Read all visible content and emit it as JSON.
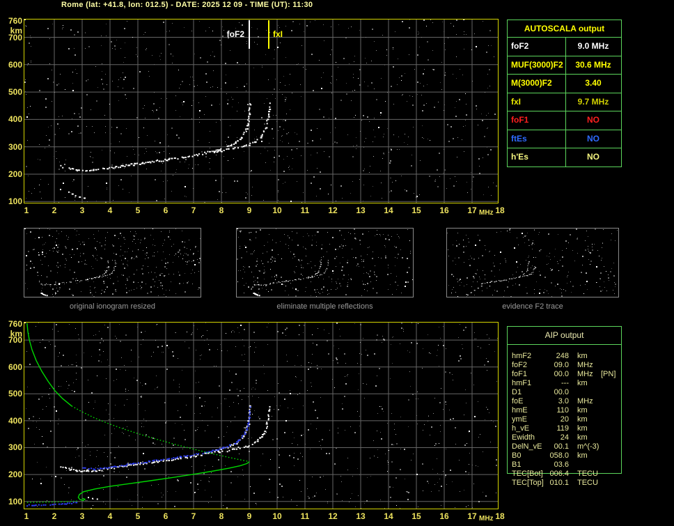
{
  "window": {
    "title": "Rome (lat: +41.8, lon: 012.5) - DATE: 2025 12 09 - TIME (UT): 11:30"
  },
  "colors": {
    "background": "#000000",
    "title_text": "#ffffa6",
    "axis_text": "#ede25e",
    "plot_border": "#d6d600",
    "grid": "#666666",
    "trace_white": "#ffffff",
    "profile_green": "#00d800",
    "scaled_trace_blue": "#2b3bf2",
    "table_border_green": "#5cd65c",
    "thumb_border_gray": "#8a8a8a",
    "caption_gray": "#9a9a9a",
    "aip_text": "#e8e89c",
    "foF2_marker": "#ffffff",
    "fxI_marker": "#ffff00"
  },
  "autoscala_table": {
    "title": "AUTOSCALA output",
    "rows": [
      {
        "label": "foF2",
        "value": "9.0 MHz",
        "label_color": "#ffffff",
        "value_color": "#ffffff"
      },
      {
        "label": "MUF(3000)F2",
        "value": "30.6 MHz",
        "label_color": "#ffff00",
        "value_color": "#ffff00"
      },
      {
        "label": "M(3000)F2",
        "value": "3.40",
        "label_color": "#ffff00",
        "value_color": "#ffff00"
      },
      {
        "label": "fxI",
        "value": "9.7 MHz",
        "label_color": "#e8e800",
        "value_color": "#cfcf00"
      },
      {
        "label": "foF1",
        "value": "NO",
        "label_color": "#ff1f1f",
        "value_color": "#ff1f1f"
      },
      {
        "label": "ftEs",
        "value": "NO",
        "label_color": "#2e6bff",
        "value_color": "#2e6bff"
      },
      {
        "label": "h'Es",
        "value": "NO",
        "label_color": "#f5f580",
        "value_color": "#f5f580"
      }
    ]
  },
  "aip_table": {
    "title": "AIP output",
    "rows": [
      {
        "name": "hmF2",
        "value": "248",
        "unit": "km",
        "note": ""
      },
      {
        "name": "foF2",
        "value": "09.0",
        "unit": "MHz",
        "note": ""
      },
      {
        "name": "foF1",
        "value": "00.0",
        "unit": "MHz",
        "note": "[PN]"
      },
      {
        "name": "hmF1",
        "value": "---",
        "unit": "km",
        "note": ""
      },
      {
        "name": "D1",
        "value": "00.0",
        "unit": "",
        "note": ""
      },
      {
        "name": "foE",
        "value": "3.0",
        "unit": "MHz",
        "note": ""
      },
      {
        "name": "hmE",
        "value": "110",
        "unit": "km",
        "note": ""
      },
      {
        "name": "ymE",
        "value": "20",
        "unit": "km",
        "note": ""
      },
      {
        "name": "h_vE",
        "value": "119",
        "unit": "km",
        "note": ""
      },
      {
        "name": "Ewidth",
        "value": "24",
        "unit": "km",
        "note": ""
      },
      {
        "name": "DelN_vE",
        "value": "00.1",
        "unit": "m^(-3)",
        "note": ""
      },
      {
        "name": "B0",
        "value": "058.0",
        "unit": "km",
        "note": ""
      },
      {
        "name": "B1",
        "value": "03.6",
        "unit": "",
        "note": ""
      },
      {
        "name": "TEC[Bot]",
        "value": "006.4",
        "unit": "TECU",
        "note": ""
      },
      {
        "name": "TEC[Top]",
        "value": "010.1",
        "unit": "TECU",
        "note": ""
      }
    ]
  },
  "thumbnails": [
    {
      "caption": "original ionogram resized"
    },
    {
      "caption": "eliminate multiple reflections"
    },
    {
      "caption": "evidence F2 trace"
    }
  ],
  "chart_data": [
    {
      "id": "scaled_ionogram",
      "type": "scatter",
      "title": "",
      "xlabel": "MHz",
      "ylabel": "km",
      "xlim": [
        1,
        18
      ],
      "ylim": [
        100,
        760
      ],
      "x_ticks": [
        1,
        2,
        3,
        4,
        5,
        6,
        7,
        8,
        9,
        10,
        11,
        12,
        13,
        14,
        15,
        16,
        17,
        18
      ],
      "y_ticks": [
        760,
        700,
        600,
        500,
        400,
        300,
        200,
        100
      ],
      "grid": true,
      "series": [
        {
          "name": "F2 ordinary trace",
          "style": "echo",
          "color": "#ffffff",
          "points": [
            [
              2.2,
              231
            ],
            [
              2.35,
              226
            ],
            [
              2.55,
              221
            ],
            [
              2.8,
              218
            ],
            [
              3.05,
              216
            ],
            [
              3.3,
              216
            ],
            [
              3.6,
              219
            ],
            [
              3.9,
              224
            ],
            [
              4.2,
              229
            ],
            [
              4.5,
              234
            ],
            [
              4.8,
              238
            ],
            [
              5.1,
              243
            ],
            [
              5.4,
              247
            ],
            [
              5.7,
              251
            ],
            [
              6.0,
              255
            ],
            [
              6.3,
              260
            ],
            [
              6.6,
              264
            ],
            [
              6.9,
              269
            ],
            [
              7.2,
              275
            ],
            [
              7.5,
              282
            ],
            [
              7.8,
              290
            ],
            [
              8.1,
              299
            ],
            [
              8.35,
              310
            ],
            [
              8.55,
              322
            ],
            [
              8.72,
              338
            ],
            [
              8.85,
              358
            ],
            [
              8.93,
              383
            ],
            [
              8.98,
              415
            ],
            [
              9.0,
              445
            ],
            [
              9.0,
              468
            ]
          ]
        },
        {
          "name": "F2 extraordinary trace",
          "style": "echo",
          "color": "#ffffff",
          "points": [
            [
              7.75,
              284
            ],
            [
              8.05,
              289
            ],
            [
              8.35,
              295
            ],
            [
              8.65,
              302
            ],
            [
              8.95,
              310
            ],
            [
              9.15,
              319
            ],
            [
              9.3,
              330
            ],
            [
              9.42,
              344
            ],
            [
              9.52,
              361
            ],
            [
              9.6,
              382
            ],
            [
              9.65,
              410
            ],
            [
              9.68,
              438
            ],
            [
              9.7,
              465
            ]
          ]
        },
        {
          "name": "E region echoes",
          "style": "blobs",
          "color": "#ffffff",
          "points": [
            [
              2.5,
              137
            ],
            [
              2.62,
              130
            ],
            [
              2.74,
              124
            ],
            [
              2.88,
              119
            ],
            [
              3.05,
              115
            ]
          ]
        }
      ],
      "markers": [
        {
          "label": "foF2",
          "x": 9.0,
          "color": "#ffffff"
        },
        {
          "label": "fxI",
          "x": 9.7,
          "color": "#ffff00"
        }
      ]
    },
    {
      "id": "profile_ionogram",
      "type": "scatter",
      "title": "",
      "xlabel": "MHz",
      "ylabel": "km",
      "xlim": [
        1,
        18
      ],
      "ylim": [
        100,
        760
      ],
      "x_ticks": [
        1,
        2,
        3,
        4,
        5,
        6,
        7,
        8,
        9,
        10,
        11,
        12,
        13,
        14,
        15,
        16,
        17,
        18
      ],
      "y_ticks": [
        760,
        700,
        600,
        500,
        400,
        300,
        200,
        100
      ],
      "grid": true,
      "series": [
        {
          "name": "F2 ordinary trace",
          "style": "echo",
          "color": "#ffffff",
          "points": [
            [
              2.2,
              231
            ],
            [
              2.35,
              226
            ],
            [
              2.55,
              221
            ],
            [
              2.8,
              218
            ],
            [
              3.05,
              216
            ],
            [
              3.3,
              216
            ],
            [
              3.6,
              219
            ],
            [
              3.9,
              224
            ],
            [
              4.2,
              229
            ],
            [
              4.5,
              234
            ],
            [
              4.8,
              238
            ],
            [
              5.1,
              243
            ],
            [
              5.4,
              247
            ],
            [
              5.7,
              251
            ],
            [
              6.0,
              255
            ],
            [
              6.3,
              260
            ],
            [
              6.6,
              264
            ],
            [
              6.9,
              269
            ],
            [
              7.2,
              275
            ],
            [
              7.5,
              282
            ],
            [
              7.8,
              290
            ],
            [
              8.1,
              299
            ],
            [
              8.35,
              310
            ],
            [
              8.55,
              322
            ],
            [
              8.72,
              338
            ],
            [
              8.85,
              358
            ],
            [
              8.93,
              383
            ],
            [
              8.98,
              415
            ],
            [
              9.0,
              445
            ],
            [
              9.0,
              468
            ]
          ]
        },
        {
          "name": "F2 extraordinary trace",
          "style": "echo",
          "color": "#ffffff",
          "points": [
            [
              7.75,
              284
            ],
            [
              8.05,
              289
            ],
            [
              8.35,
              295
            ],
            [
              8.65,
              302
            ],
            [
              8.95,
              310
            ],
            [
              9.15,
              319
            ],
            [
              9.3,
              330
            ],
            [
              9.42,
              344
            ],
            [
              9.52,
              361
            ],
            [
              9.6,
              382
            ],
            [
              9.65,
              410
            ],
            [
              9.68,
              438
            ],
            [
              9.7,
              465
            ]
          ]
        },
        {
          "name": "E region echoes",
          "style": "blobs",
          "color": "#ffffff",
          "points": [
            [
              3.2,
              117
            ],
            [
              3.35,
              113
            ],
            [
              3.52,
              111
            ]
          ]
        },
        {
          "name": "autoscala scaled E trace",
          "style": "dots",
          "color": "#2b3bf2",
          "points": [
            [
              1.0,
              88
            ],
            [
              1.25,
              88
            ],
            [
              1.5,
              89
            ],
            [
              1.75,
              89
            ],
            [
              2.0,
              90
            ],
            [
              2.2,
              91
            ],
            [
              2.4,
              93
            ],
            [
              2.6,
              96
            ],
            [
              2.75,
              100
            ],
            [
              2.85,
              106
            ]
          ]
        },
        {
          "name": "autoscala scaled F trace",
          "style": "dots",
          "color": "#2b3bf2",
          "points": [
            [
              3.0,
              228
            ],
            [
              3.2,
              224
            ],
            [
              3.45,
              222
            ],
            [
              3.7,
              224
            ],
            [
              4.0,
              229
            ],
            [
              4.3,
              234
            ],
            [
              4.6,
              239
            ],
            [
              4.9,
              244
            ],
            [
              5.2,
              248
            ],
            [
              5.5,
              252
            ],
            [
              5.8,
              257
            ],
            [
              6.1,
              261
            ],
            [
              6.4,
              266
            ],
            [
              6.7,
              271
            ],
            [
              7.0,
              276
            ],
            [
              7.3,
              282
            ],
            [
              7.6,
              289
            ],
            [
              7.9,
              297
            ],
            [
              8.2,
              307
            ],
            [
              8.45,
              319
            ],
            [
              8.65,
              333
            ],
            [
              8.8,
              352
            ],
            [
              8.9,
              376
            ],
            [
              8.96,
              406
            ],
            [
              9.0,
              438
            ],
            [
              9.0,
              462
            ]
          ]
        }
      ],
      "profile": {
        "name": "electron density profile (plasma frequency vs height)",
        "color": "#00d800",
        "peak": {
          "hmF2_km": 248,
          "foF2_mhz": 9.0,
          "foE_mhz": 3.0,
          "hmE_km": 110
        },
        "segments": [
          {
            "style": "solid",
            "points": [
              [
                1.02,
                763
              ],
              [
                1.05,
                732
              ],
              [
                1.1,
                702
              ],
              [
                1.2,
                664
              ],
              [
                1.35,
                624
              ],
              [
                1.55,
                584
              ],
              [
                1.78,
                546
              ],
              [
                2.02,
                512
              ],
              [
                2.3,
                482
              ],
              [
                2.62,
                455
              ]
            ]
          },
          {
            "style": "dotted",
            "points": [
              [
                2.62,
                455
              ],
              [
                3.0,
                433
              ],
              [
                3.45,
                410
              ],
              [
                3.95,
                389
              ],
              [
                4.5,
                369
              ],
              [
                5.1,
                349
              ],
              [
                5.75,
                329
              ],
              [
                6.4,
                310
              ],
              [
                7.05,
                293
              ],
              [
                7.7,
                277
              ],
              [
                8.3,
                263
              ],
              [
                8.75,
                253
              ],
              [
                9.0,
                248
              ]
            ]
          },
          {
            "style": "solid",
            "points": [
              [
                9.0,
                248
              ],
              [
                8.92,
                241
              ],
              [
                8.68,
                233
              ],
              [
                8.25,
                223
              ],
              [
                7.65,
                212
              ],
              [
                6.95,
                200
              ],
              [
                6.2,
                188
              ],
              [
                5.45,
                177
              ],
              [
                4.7,
                166
              ],
              [
                4.0,
                156
              ],
              [
                3.45,
                146
              ],
              [
                3.05,
                136
              ],
              [
                2.9,
                126
              ],
              [
                2.86,
                115
              ],
              [
                2.92,
                107
              ],
              [
                3.04,
                103
              ],
              [
                3.1,
                108
              ],
              [
                3.0,
                112
              ]
            ]
          },
          {
            "style": "dotted",
            "points": [
              [
                2.82,
                101
              ],
              [
                2.4,
                99
              ],
              [
                1.95,
                98
              ],
              [
                1.5,
                97
              ],
              [
                1.0,
                96
              ]
            ]
          }
        ]
      },
      "markers": []
    }
  ]
}
